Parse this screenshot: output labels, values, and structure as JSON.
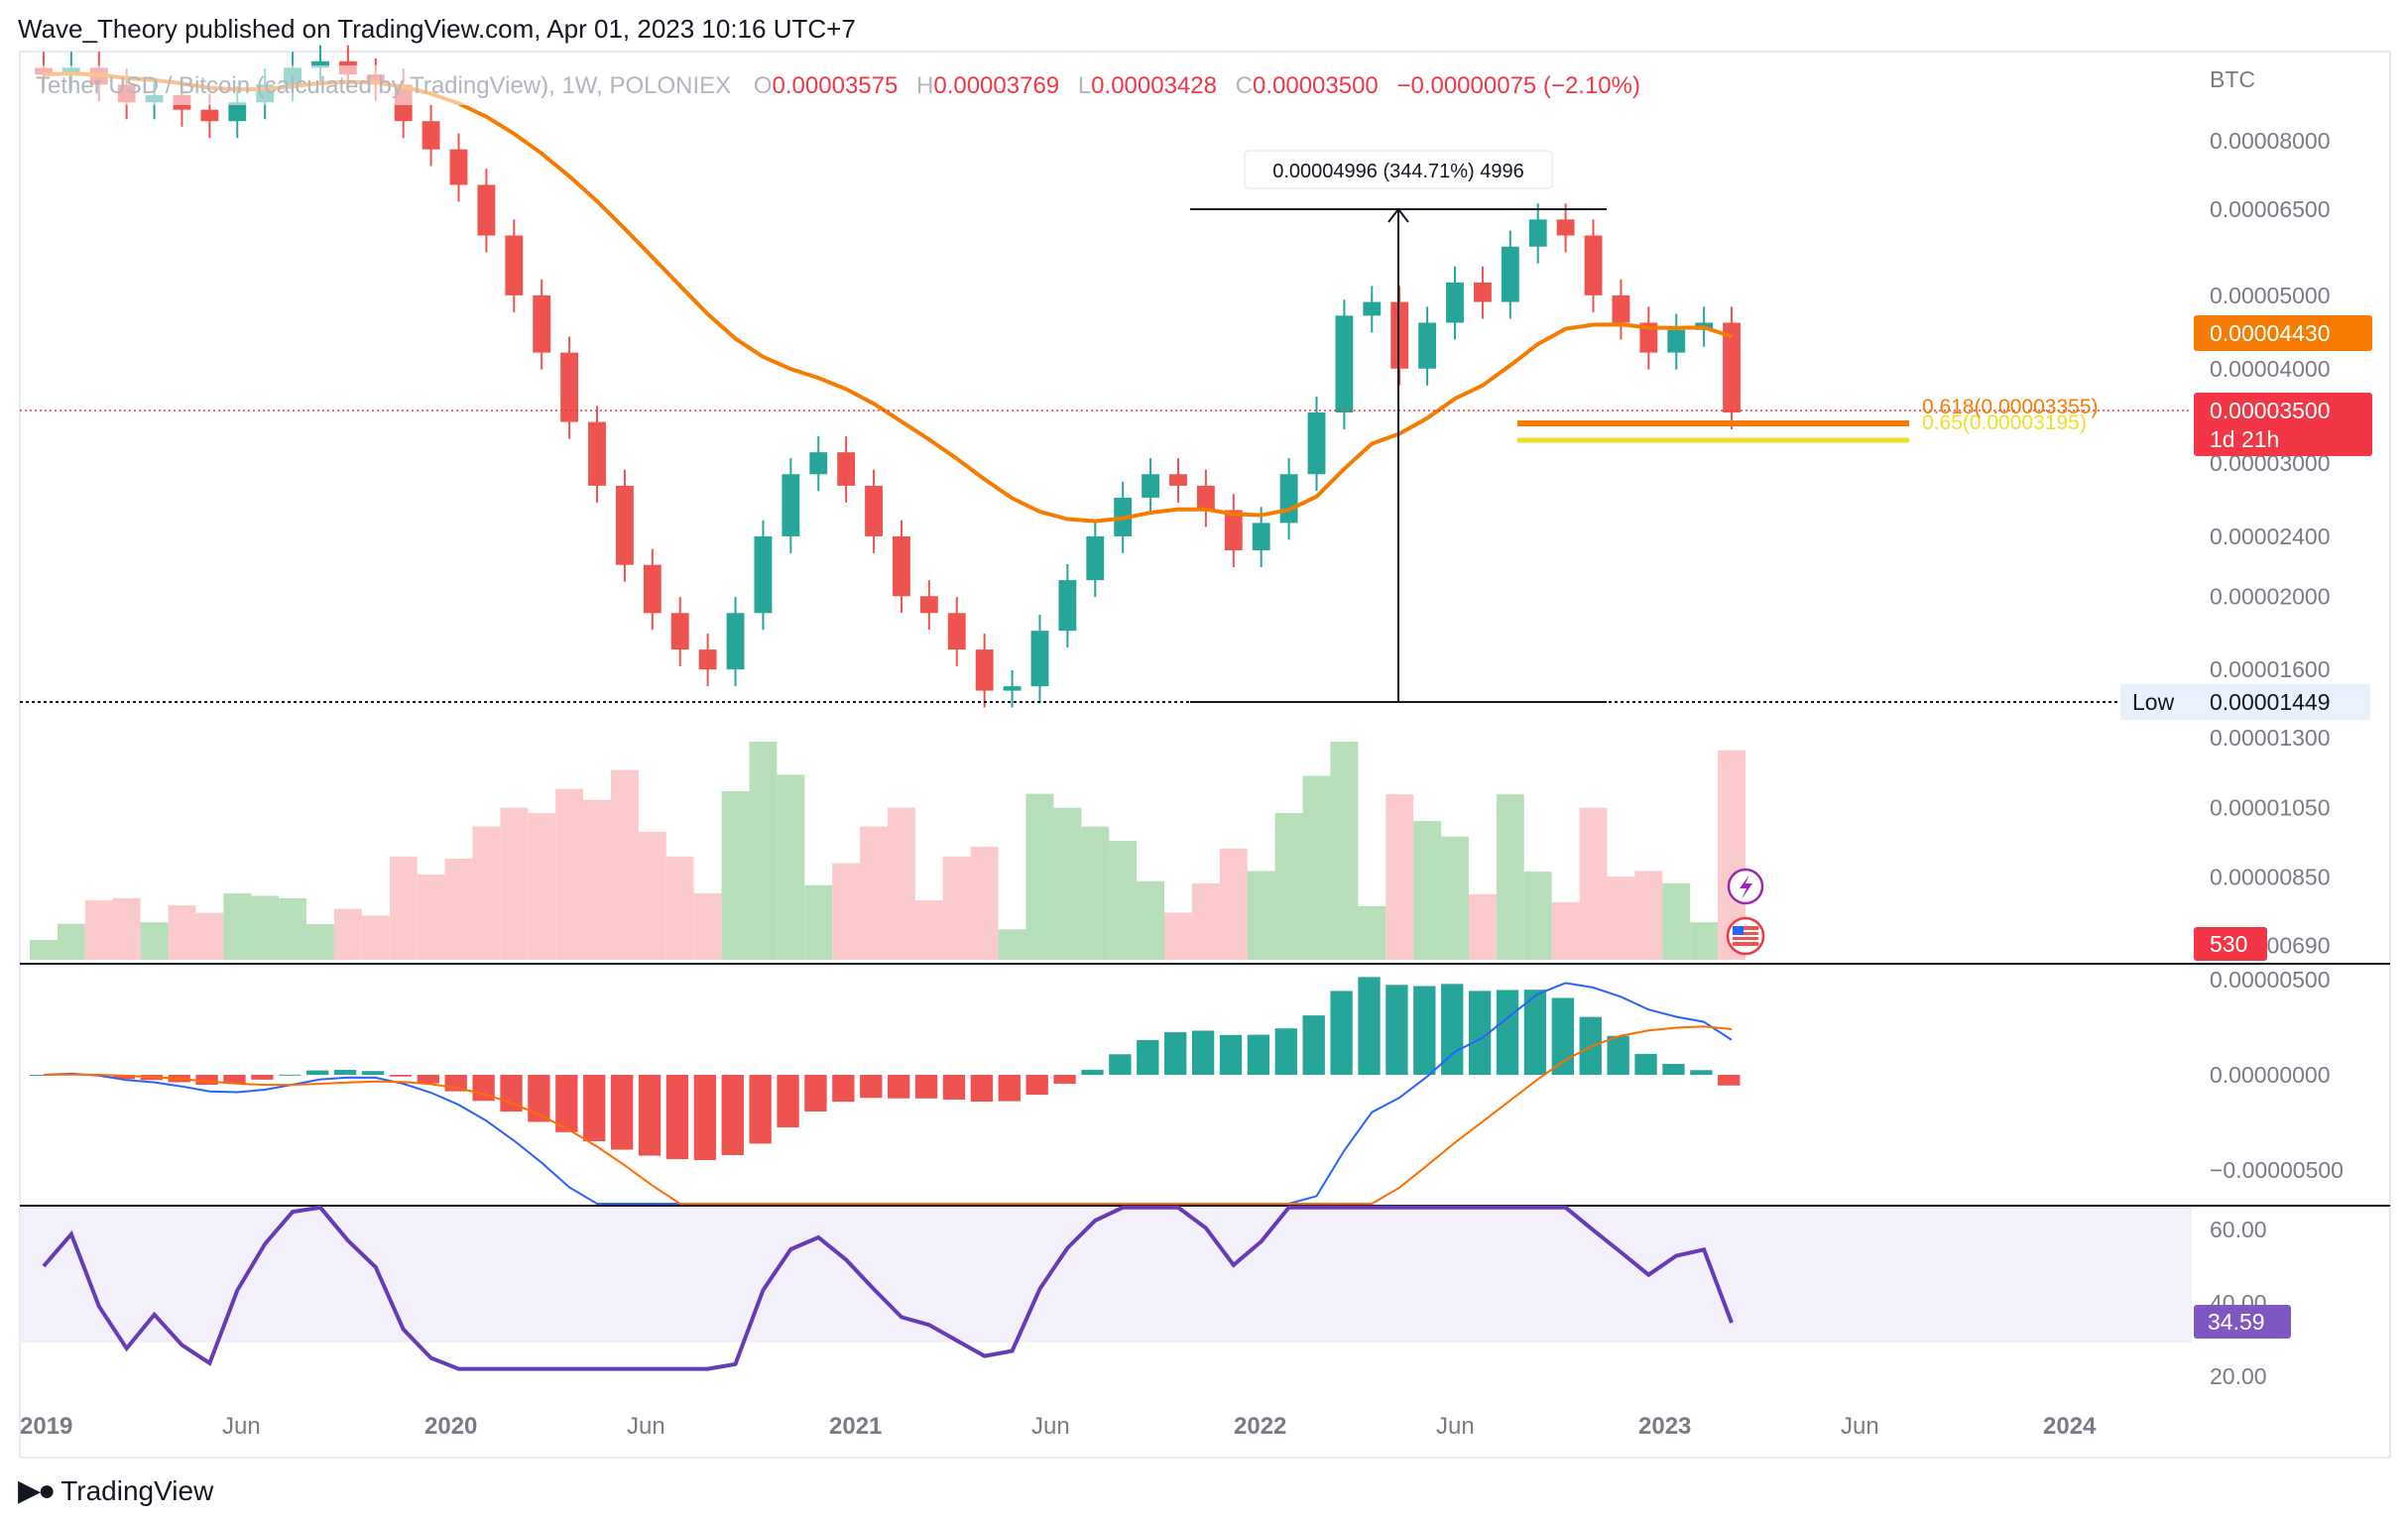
{
  "header": {
    "publish_line": "Wave_Theory published on TradingView.com, Apr 01, 2023 10:16 UTC+7"
  },
  "footer": {
    "brand": "TradingView",
    "logo": "tradingview-logo-icon"
  },
  "legend": {
    "symbol": "Tether USD / Bitcoin (calculated by TradingView), 1W, POLONIEX",
    "open_label": "O",
    "open": "0.00003575",
    "high_label": "H",
    "high": "0.00003769",
    "low_label": "L",
    "low": "0.00003428",
    "close_label": "C",
    "close": "0.00003500",
    "change": "−0.00000075 (−2.10%)"
  },
  "colors": {
    "up": "#26a69a",
    "down": "#ef5350",
    "ma": "#f57c00",
    "fib618": "#f57c00",
    "fib65": "#f0dc28",
    "current": "#f23645",
    "rsi": "#7e57c2",
    "macd": "#2962ff",
    "signal": "#ff6d00"
  },
  "chart_data": [
    {
      "type": "candlestick",
      "pane": "price",
      "currency": "BTC",
      "y_axis_ticks": [
        "0.00008000",
        "0.00006500",
        "0.00005000",
        "0.00004000",
        "0.00003000",
        "0.00002400",
        "0.00002000",
        "0.00001600",
        "0.00001300",
        "0.00001050",
        "0.00000850",
        "0.00000690"
      ],
      "y_axis_values": [
        8e-05,
        6.5e-05,
        5e-05,
        4e-05,
        3e-05,
        2.4e-05,
        2e-05,
        1.6e-05,
        1.3e-05,
        1.05e-05,
        8.5e-06,
        6.9e-06
      ],
      "x_axis_ticks": [
        "2019",
        "Jun",
        "2020",
        "Jun",
        "2021",
        "Jun",
        "2022",
        "Jun",
        "2023",
        "Jun",
        "2024"
      ],
      "close_series_approx": [
        9.8e-05,
        0.0001,
        9.5e-05,
        9e-05,
        9.2e-05,
        8.8e-05,
        8.5e-05,
        9e-05,
        9.5e-05,
        0.0001,
        0.000102,
        9.8e-05,
        9.5e-05,
        8.5e-05,
        7.8e-05,
        7e-05,
        6e-05,
        5e-05,
        4.2e-05,
        3.4e-05,
        2.8e-05,
        2.2e-05,
        1.9e-05,
        1.7e-05,
        1.6e-05,
        1.9e-05,
        2.4e-05,
        2.9e-05,
        3.1e-05,
        2.8e-05,
        2.4e-05,
        2e-05,
        1.9e-05,
        1.7e-05,
        1.5e-05,
        1.52e-05,
        1.8e-05,
        2.1e-05,
        2.4e-05,
        2.7e-05,
        2.9e-05,
        2.8e-05,
        2.6e-05,
        2.3e-05,
        2.5e-05,
        2.9e-05,
        3.5e-05,
        4.7e-05,
        4.9e-05,
        4e-05,
        4.6e-05,
        5.2e-05,
        4.9e-05,
        5.8e-05,
        6.3e-05,
        6e-05,
        5e-05,
        4.6e-05,
        4.2e-05,
        4.5e-05,
        4.6e-05,
        3.5e-05
      ],
      "moving_average": {
        "label": "0.00004430",
        "value": 4.43e-05
      },
      "current_price": {
        "label": "0.00003500",
        "value": 3.5e-05,
        "countdown": "1d 21h"
      },
      "low_marker": {
        "label": "Low",
        "value_label": "0.00001449",
        "value": 1.449e-05
      },
      "measure": {
        "label": "0.00004996 (344.71%) 4996",
        "from": 1.449e-05,
        "to": 6.445e-05
      },
      "fib_levels": [
        {
          "label": "0.618(0.00003355)",
          "value": 3.355e-05
        },
        {
          "label": "0.65(0.00003195)",
          "value": 3.195e-05
        }
      ]
    },
    {
      "type": "bar",
      "pane": "volume",
      "last_value_label": "530"
    },
    {
      "type": "line",
      "pane": "macd",
      "y_axis_ticks": [
        "0.00000500",
        "0.00000000",
        "−0.00000500"
      ],
      "y_axis_values": [
        5e-06,
        0,
        -5e-06
      ]
    },
    {
      "type": "line",
      "pane": "rsi",
      "y_axis_ticks": [
        "60.00",
        "40.00",
        "20.00"
      ],
      "y_axis_values": [
        60,
        40,
        20
      ],
      "last_value_label": "34.59",
      "last_value": 34.59
    }
  ],
  "icons": [
    "lightning-icon",
    "us-flag-icon"
  ]
}
